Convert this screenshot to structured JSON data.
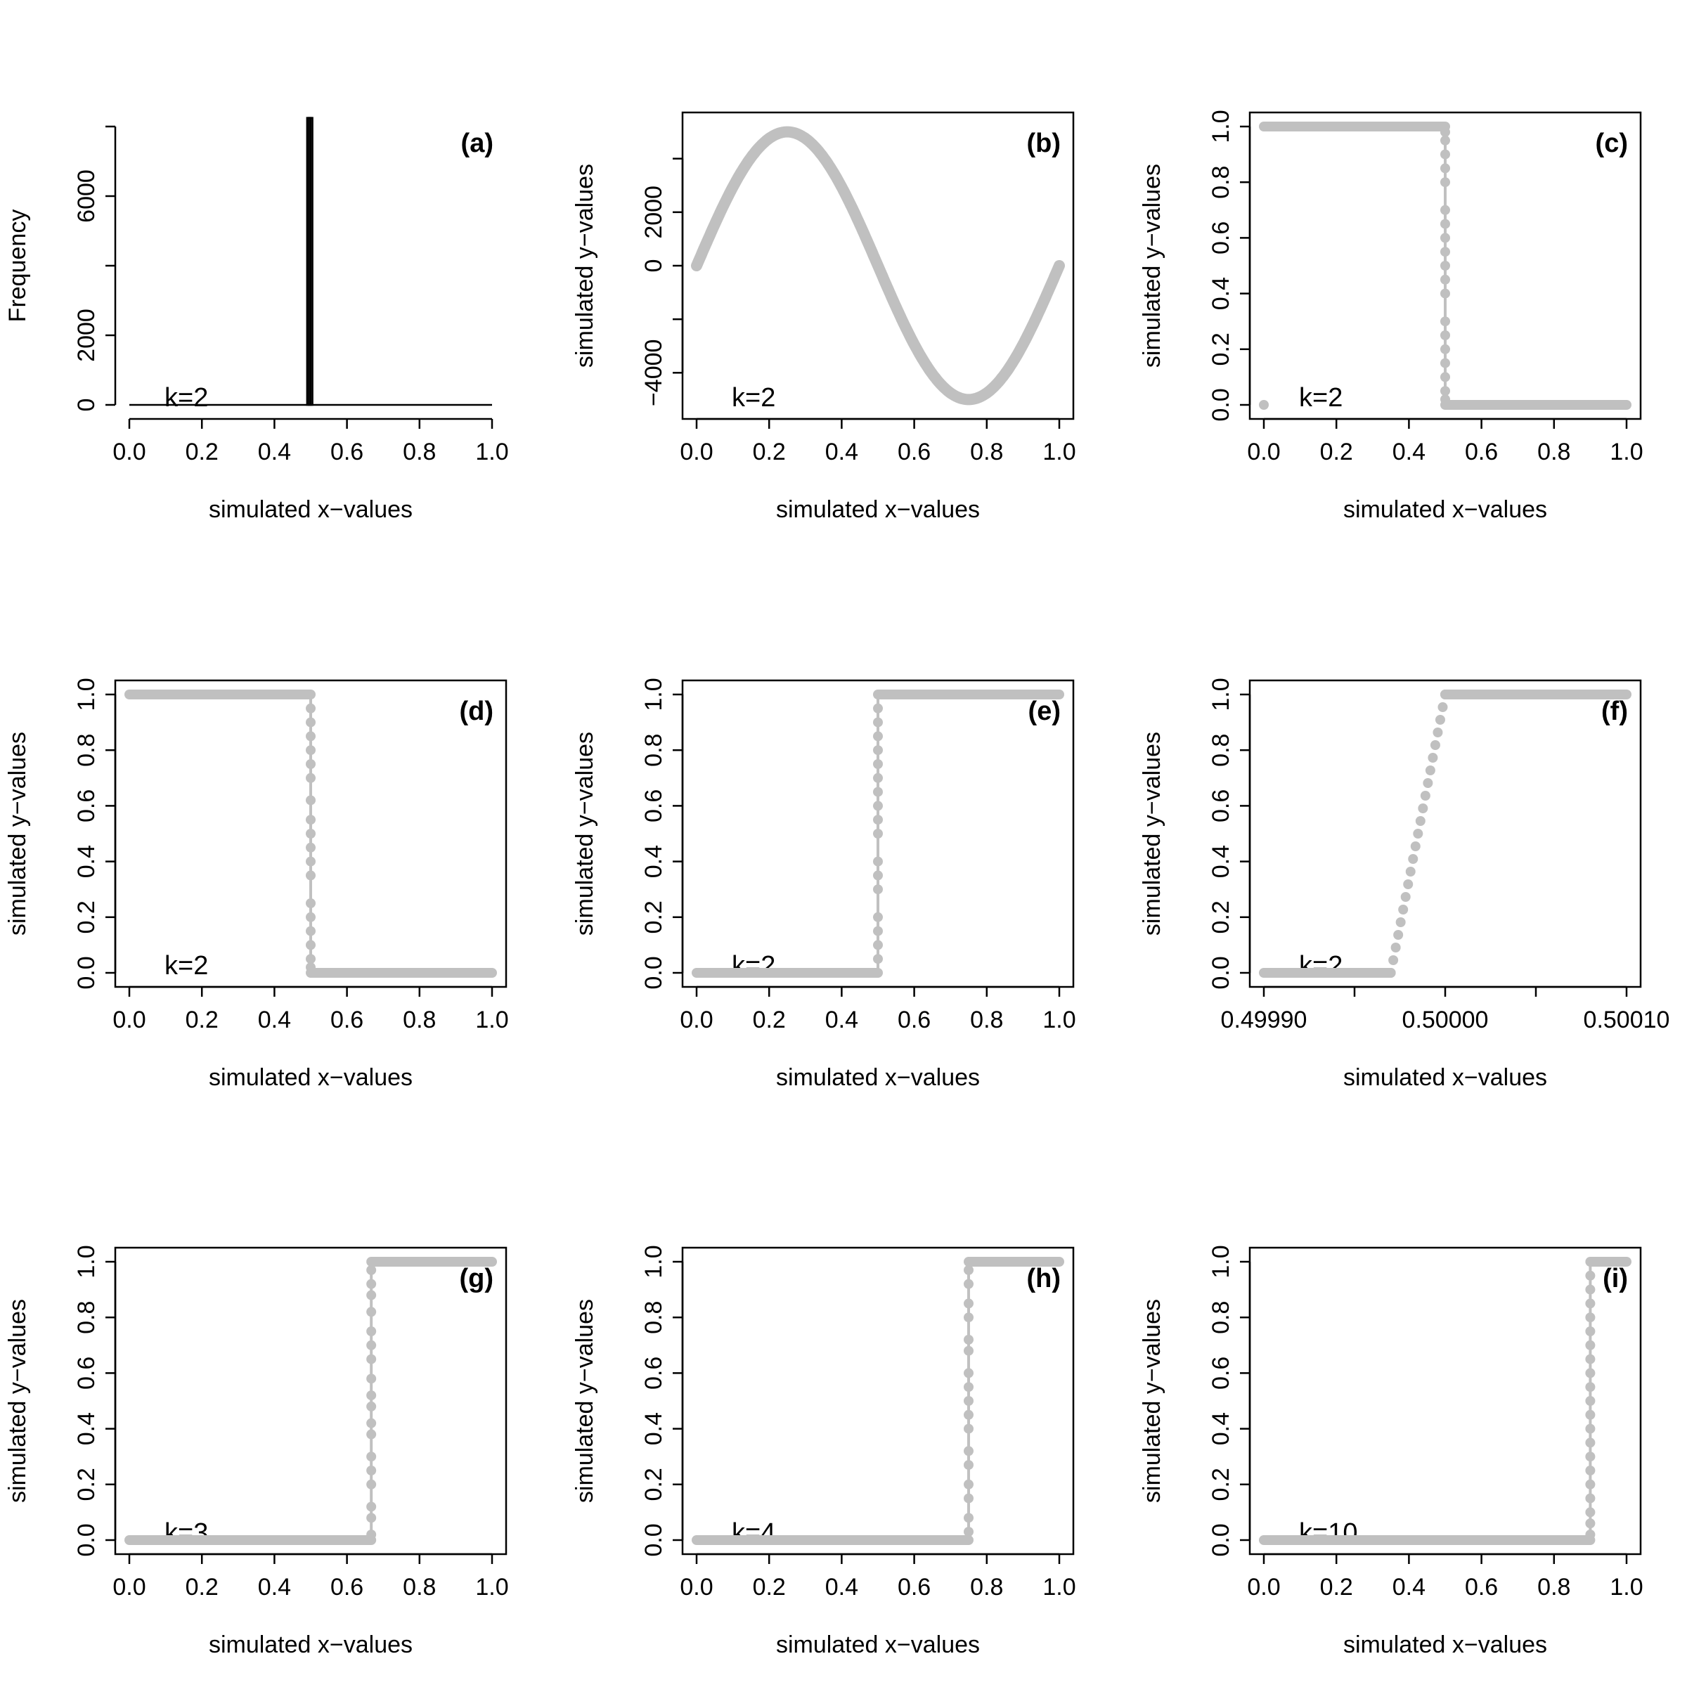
{
  "chart_data": [
    {
      "panel": "(a)",
      "type": "histogram",
      "xlabel": "simulated x−values",
      "ylabel": "Frequency",
      "annotation": "k=2",
      "xlim": [
        0,
        1
      ],
      "ylim": [
        0,
        8000
      ],
      "xticks": [
        "0.0",
        "0.2",
        "0.4",
        "0.6",
        "0.8",
        "1.0"
      ],
      "yticks": [
        "0",
        "2000",
        "6000"
      ],
      "ytick_values": [
        0,
        2000,
        4000,
        6000,
        8000
      ],
      "bins": [
        {
          "x0": 0.49,
          "x1": 0.495,
          "count": 8250
        },
        {
          "x0": 0.495,
          "x1": 0.5,
          "count": 8250
        },
        {
          "x0": 0.5,
          "x1": 0.505,
          "count": 8250
        }
      ],
      "box": false
    },
    {
      "panel": "(b)",
      "type": "scatter",
      "xlabel": "simulated x−values",
      "ylabel": "simulated y−values",
      "annotation": "k=2",
      "xlim": [
        0,
        1
      ],
      "ylim": [
        -5200,
        5200
      ],
      "xticks": [
        "0.0",
        "0.2",
        "0.4",
        "0.6",
        "0.8",
        "1.0"
      ],
      "yticks": [
        "−4000",
        "0",
        "2000"
      ],
      "ytick_values": [
        -4000,
        -2000,
        0,
        2000,
        4000
      ],
      "curve": "sine",
      "amplitude": 5000,
      "x": [
        0.0,
        0.05,
        0.1,
        0.15,
        0.2,
        0.25,
        0.3,
        0.35,
        0.4,
        0.45,
        0.5,
        0.55,
        0.6,
        0.65,
        0.7,
        0.75,
        0.8,
        0.85,
        0.9,
        0.95,
        1.0
      ],
      "y": [
        0,
        1545,
        2939,
        4045,
        4755,
        5000,
        4755,
        4045,
        2939,
        1545,
        0,
        -1545,
        -2939,
        -4045,
        -4755,
        -5000,
        -4755,
        -4045,
        -2939,
        -1545,
        0
      ],
      "box": true
    },
    {
      "panel": "(c)",
      "type": "scatter",
      "xlabel": "simulated x−values",
      "ylabel": "simulated y−values",
      "annotation": "k=2",
      "xlim": [
        0,
        1
      ],
      "ylim": [
        0,
        1
      ],
      "xticks": [
        "0.0",
        "0.2",
        "0.4",
        "0.6",
        "0.8",
        "1.0"
      ],
      "yticks": [
        "0.0",
        "0.2",
        "0.4",
        "0.6",
        "0.8",
        "1.0"
      ],
      "segments": [
        {
          "x0": 0.0,
          "x1": 0.0,
          "y": 0.0
        },
        {
          "x0": 0.0,
          "x1": 0.5,
          "y": 1.0
        },
        {
          "x0": 0.5,
          "x1": 1.0,
          "y": 0.0
        }
      ],
      "jump_x": 0.5,
      "jump_y": [
        0.02,
        0.05,
        0.1,
        0.15,
        0.2,
        0.25,
        0.3,
        0.4,
        0.45,
        0.5,
        0.55,
        0.6,
        0.65,
        0.7,
        0.8,
        0.85,
        0.9,
        0.95,
        0.98
      ],
      "box": true
    },
    {
      "panel": "(d)",
      "type": "scatter",
      "xlabel": "simulated x−values",
      "ylabel": "simulated y−values",
      "annotation": "k=2",
      "xlim": [
        0,
        1
      ],
      "ylim": [
        0,
        1
      ],
      "xticks": [
        "0.0",
        "0.2",
        "0.4",
        "0.6",
        "0.8",
        "1.0"
      ],
      "yticks": [
        "0.0",
        "0.2",
        "0.4",
        "0.6",
        "0.8",
        "1.0"
      ],
      "segments": [
        {
          "x0": 0.0,
          "x1": 0.5,
          "y": 1.0
        },
        {
          "x0": 0.5,
          "x1": 1.0,
          "y": 0.0
        }
      ],
      "jump_x": 0.5,
      "jump_y": [
        0.02,
        0.05,
        0.1,
        0.15,
        0.2,
        0.25,
        0.35,
        0.4,
        0.45,
        0.5,
        0.55,
        0.62,
        0.7,
        0.75,
        0.8,
        0.85,
        0.9,
        0.95
      ],
      "box": true
    },
    {
      "panel": "(e)",
      "type": "scatter",
      "xlabel": "simulated x−values",
      "ylabel": "simulated y−values",
      "annotation": "k=2",
      "xlim": [
        0,
        1
      ],
      "ylim": [
        0,
        1
      ],
      "xticks": [
        "0.0",
        "0.2",
        "0.4",
        "0.6",
        "0.8",
        "1.0"
      ],
      "yticks": [
        "0.0",
        "0.2",
        "0.4",
        "0.6",
        "0.8",
        "1.0"
      ],
      "segments": [
        {
          "x0": 0.0,
          "x1": 0.5,
          "y": 0.0
        },
        {
          "x0": 0.5,
          "x1": 1.0,
          "y": 1.0
        }
      ],
      "jump_x": 0.5,
      "jump_y": [
        0.05,
        0.1,
        0.15,
        0.2,
        0.3,
        0.35,
        0.4,
        0.5,
        0.55,
        0.6,
        0.65,
        0.7,
        0.75,
        0.8,
        0.85,
        0.9,
        0.95
      ],
      "box": true
    },
    {
      "panel": "(f)",
      "type": "scatter",
      "xlabel": "simulated x−values",
      "ylabel": "simulated y−values",
      "annotation": "k=2",
      "xlim": [
        0.4999,
        0.5001
      ],
      "ylim": [
        0,
        1
      ],
      "xticks": [
        "0.49990",
        "0.50000",
        "0.50010"
      ],
      "xtick_values": [
        0.4999,
        0.49995,
        0.5,
        0.50005,
        0.5001
      ],
      "xtick_labels": [
        "0.49990",
        "",
        "0.50000",
        "",
        "0.50010"
      ],
      "yticks": [
        "0.0",
        "0.2",
        "0.4",
        "0.6",
        "0.8",
        "1.0"
      ],
      "segments": [
        {
          "x0": 0.4999,
          "x1": 0.49997,
          "y": 0.0
        },
        {
          "x0": 0.5,
          "x1": 0.5001,
          "y": 1.0
        }
      ],
      "ramp": {
        "x0": 0.49997,
        "x1": 0.5,
        "y0": 0.0,
        "y1": 1.0
      },
      "box": true
    },
    {
      "panel": "(g)",
      "type": "scatter",
      "xlabel": "simulated x−values",
      "ylabel": "simulated y−values",
      "annotation": "k=3",
      "xlim": [
        0,
        1
      ],
      "ylim": [
        0,
        1
      ],
      "xticks": [
        "0.0",
        "0.2",
        "0.4",
        "0.6",
        "0.8",
        "1.0"
      ],
      "yticks": [
        "0.0",
        "0.2",
        "0.4",
        "0.6",
        "0.8",
        "1.0"
      ],
      "segments": [
        {
          "x0": 0.0,
          "x1": 0.667,
          "y": 0.0
        },
        {
          "x0": 0.667,
          "x1": 1.0,
          "y": 1.0
        }
      ],
      "jump_x": 0.667,
      "jump_y": [
        0.02,
        0.08,
        0.12,
        0.2,
        0.25,
        0.3,
        0.38,
        0.42,
        0.48,
        0.52,
        0.58,
        0.65,
        0.7,
        0.75,
        0.82,
        0.88,
        0.92,
        0.97
      ],
      "box": true
    },
    {
      "panel": "(h)",
      "type": "scatter",
      "xlabel": "simulated x−values",
      "ylabel": "simulated y−values",
      "annotation": "k=4",
      "xlim": [
        0,
        1
      ],
      "ylim": [
        0,
        1
      ],
      "xticks": [
        "0.0",
        "0.2",
        "0.4",
        "0.6",
        "0.8",
        "1.0"
      ],
      "yticks": [
        "0.0",
        "0.2",
        "0.4",
        "0.6",
        "0.8",
        "1.0"
      ],
      "segments": [
        {
          "x0": 0.0,
          "x1": 0.75,
          "y": 0.0
        },
        {
          "x0": 0.75,
          "x1": 1.0,
          "y": 1.0
        }
      ],
      "jump_x": 0.75,
      "jump_y": [
        0.03,
        0.08,
        0.15,
        0.2,
        0.27,
        0.32,
        0.4,
        0.45,
        0.5,
        0.55,
        0.6,
        0.68,
        0.72,
        0.8,
        0.85,
        0.92,
        0.97
      ],
      "box": true
    },
    {
      "panel": "(i)",
      "type": "scatter",
      "xlabel": "simulated x−values",
      "ylabel": "simulated y−values",
      "annotation": "k=10",
      "xlim": [
        0,
        1
      ],
      "ylim": [
        0,
        1
      ],
      "xticks": [
        "0.0",
        "0.2",
        "0.4",
        "0.6",
        "0.8",
        "1.0"
      ],
      "yticks": [
        "0.0",
        "0.2",
        "0.4",
        "0.6",
        "0.8",
        "1.0"
      ],
      "segments": [
        {
          "x0": 0.0,
          "x1": 0.9,
          "y": 0.0
        },
        {
          "x0": 0.9,
          "x1": 1.0,
          "y": 1.0
        }
      ],
      "jump_x": 0.9,
      "jump_y": [
        0.02,
        0.06,
        0.1,
        0.15,
        0.2,
        0.25,
        0.3,
        0.35,
        0.4,
        0.45,
        0.5,
        0.55,
        0.6,
        0.65,
        0.7,
        0.75,
        0.8,
        0.85,
        0.9,
        0.95
      ],
      "box": true
    }
  ],
  "style": {
    "point_color": "#c0c0c0",
    "axis_color": "#000000"
  }
}
